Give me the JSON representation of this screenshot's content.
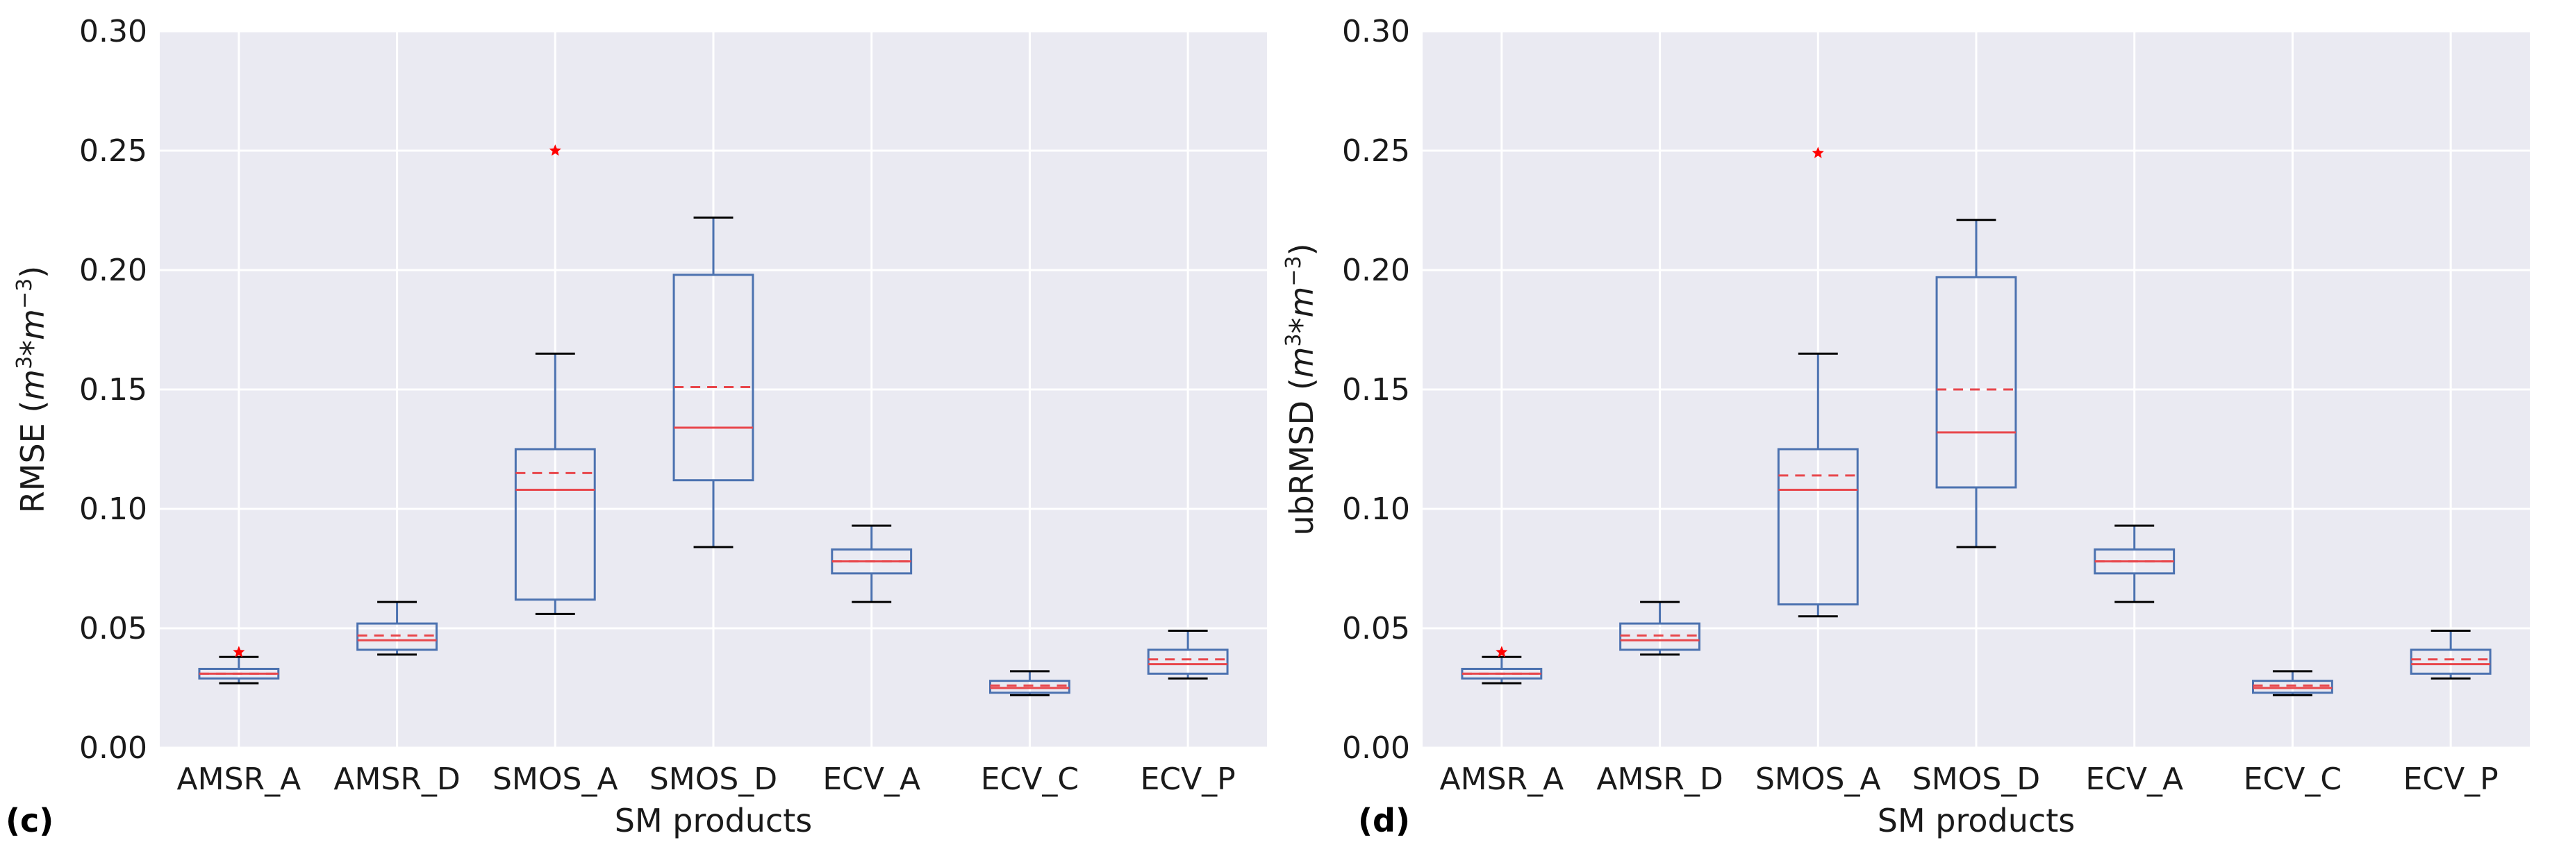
{
  "chart_data": [
    {
      "type": "box",
      "panel_label": "(c)",
      "xlabel": "SM products",
      "ylabel_main": "RMSE (",
      "ylabel_math": {
        "base1": "m",
        "exp1": "3",
        "mid": "*",
        "base2": "m",
        "exp2": "−3"
      },
      "ylabel_close": ")",
      "ylim": [
        0,
        0.3
      ],
      "yticks": [
        0.0,
        0.05,
        0.1,
        0.15,
        0.2,
        0.25,
        0.3
      ],
      "ytick_labels": [
        "0.00",
        "0.05",
        "0.10",
        "0.15",
        "0.20",
        "0.25",
        "0.30"
      ],
      "grid": true,
      "categories": [
        "AMSR_A",
        "AMSR_D",
        "SMOS_A",
        "SMOS_D",
        "ECV_A",
        "ECV_C",
        "ECV_P"
      ],
      "boxes": [
        {
          "whislo": 0.027,
          "q1": 0.029,
          "med": 0.031,
          "mean": 0.031,
          "q3": 0.033,
          "whishi": 0.038,
          "fliers": [
            0.04
          ]
        },
        {
          "whislo": 0.039,
          "q1": 0.041,
          "med": 0.045,
          "mean": 0.047,
          "q3": 0.052,
          "whishi": 0.061,
          "fliers": []
        },
        {
          "whislo": 0.056,
          "q1": 0.062,
          "med": 0.108,
          "mean": 0.115,
          "q3": 0.125,
          "whishi": 0.165,
          "fliers": [
            0.25
          ]
        },
        {
          "whislo": 0.084,
          "q1": 0.112,
          "med": 0.134,
          "mean": 0.151,
          "q3": 0.198,
          "whishi": 0.222,
          "fliers": []
        },
        {
          "whislo": 0.061,
          "q1": 0.073,
          "med": 0.078,
          "mean": 0.078,
          "q3": 0.083,
          "whishi": 0.093,
          "fliers": []
        },
        {
          "whislo": 0.022,
          "q1": 0.023,
          "med": 0.025,
          "mean": 0.026,
          "q3": 0.028,
          "whishi": 0.032,
          "fliers": []
        },
        {
          "whislo": 0.029,
          "q1": 0.031,
          "med": 0.035,
          "mean": 0.037,
          "q3": 0.041,
          "whishi": 0.049,
          "fliers": []
        }
      ]
    },
    {
      "type": "box",
      "panel_label": "(d)",
      "xlabel": "SM products",
      "ylabel_main": "ubRMSD (",
      "ylabel_math": {
        "base1": "m",
        "exp1": "3",
        "mid": "*",
        "base2": "m",
        "exp2": "−3"
      },
      "ylabel_close": ")",
      "ylim": [
        0,
        0.3
      ],
      "yticks": [
        0.0,
        0.05,
        0.1,
        0.15,
        0.2,
        0.25,
        0.3
      ],
      "ytick_labels": [
        "0.00",
        "0.05",
        "0.10",
        "0.15",
        "0.20",
        "0.25",
        "0.30"
      ],
      "grid": true,
      "categories": [
        "AMSR_A",
        "AMSR_D",
        "SMOS_A",
        "SMOS_D",
        "ECV_A",
        "ECV_C",
        "ECV_P"
      ],
      "boxes": [
        {
          "whislo": 0.027,
          "q1": 0.029,
          "med": 0.031,
          "mean": 0.031,
          "q3": 0.033,
          "whishi": 0.038,
          "fliers": [
            0.04
          ]
        },
        {
          "whislo": 0.039,
          "q1": 0.041,
          "med": 0.045,
          "mean": 0.047,
          "q3": 0.052,
          "whishi": 0.061,
          "fliers": []
        },
        {
          "whislo": 0.055,
          "q1": 0.06,
          "med": 0.108,
          "mean": 0.114,
          "q3": 0.125,
          "whishi": 0.165,
          "fliers": [
            0.249
          ]
        },
        {
          "whislo": 0.084,
          "q1": 0.109,
          "med": 0.132,
          "mean": 0.15,
          "q3": 0.197,
          "whishi": 0.221,
          "fliers": []
        },
        {
          "whislo": 0.061,
          "q1": 0.073,
          "med": 0.078,
          "mean": 0.078,
          "q3": 0.083,
          "whishi": 0.093,
          "fliers": []
        },
        {
          "whislo": 0.022,
          "q1": 0.023,
          "med": 0.025,
          "mean": 0.026,
          "q3": 0.028,
          "whishi": 0.032,
          "fliers": []
        },
        {
          "whislo": 0.029,
          "q1": 0.031,
          "med": 0.035,
          "mean": 0.037,
          "q3": 0.041,
          "whishi": 0.049,
          "fliers": []
        }
      ]
    }
  ],
  "colors": {
    "plot_background": "#eaeaf2",
    "grid": "#ffffff",
    "box": "#4c72b0",
    "median": "#e8474c",
    "mean": "#e8474c",
    "whisker": "#4c72b0",
    "cap": "#000000",
    "flier": "#ff0000"
  }
}
